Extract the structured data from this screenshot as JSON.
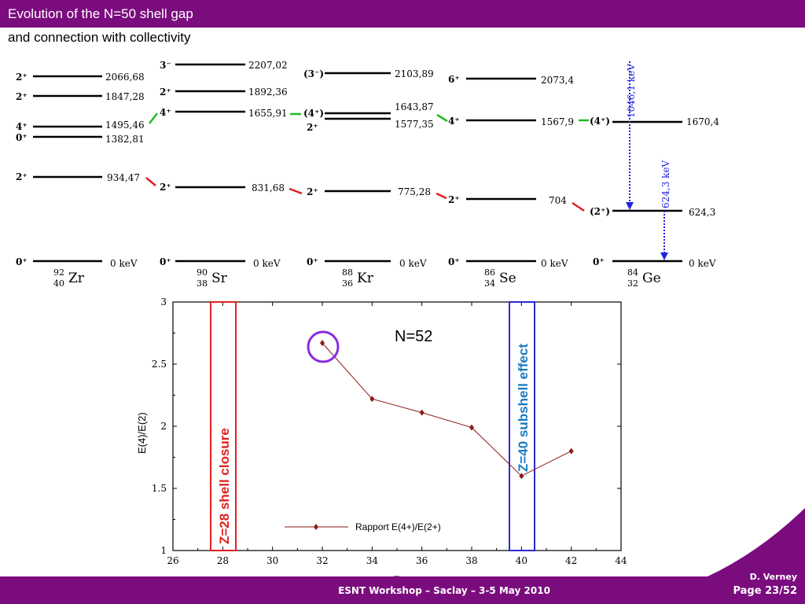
{
  "slide": {
    "title": "Evolution of the N=50 shell gap",
    "subtitle": "and connection with collectivity",
    "footer": "ESNT Workshop –   Saclay –   3-5 May 2010",
    "author": "D. Verney",
    "page": "Page 23/52"
  },
  "colors": {
    "brand": "#7b0c7e",
    "series": "#8b1a1a",
    "shell28": "#e02020",
    "subshell40": "#2a2ad0",
    "subshell40_text": "#1a7ac0",
    "circle": "#8a2be2",
    "connector_green": "#22bb22",
    "connector_red": "#e02020",
    "transition": "#2222dd"
  },
  "level_schemes": [
    {
      "nucleus": "Zr",
      "mass": "92",
      "z": "40",
      "levels": [
        {
          "spin": "2⁺",
          "energy": "2066,68"
        },
        {
          "spin": "2⁺",
          "energy": "1847,28"
        },
        {
          "spin": "4⁺",
          "energy": "1495,46"
        },
        {
          "spin": "0⁺",
          "energy": "1382,81"
        },
        {
          "spin": "2⁺",
          "energy": "934,47"
        },
        {
          "spin": "0⁺",
          "energy": "0 keV"
        }
      ]
    },
    {
      "nucleus": "Sr",
      "mass": "90",
      "z": "38",
      "levels": [
        {
          "spin": "3⁻",
          "energy": "2207,02"
        },
        {
          "spin": "2⁺",
          "energy": "1892,36"
        },
        {
          "spin": "4⁺",
          "energy": "1655,91"
        },
        {
          "spin": "2⁺",
          "energy": "831,68"
        },
        {
          "spin": "0⁺",
          "energy": "0 keV"
        }
      ]
    },
    {
      "nucleus": "Kr",
      "mass": "88",
      "z": "36",
      "levels": [
        {
          "spin": "(3⁻)",
          "energy": "2103,89"
        },
        {
          "spin": "(4⁺)",
          "energy": "1643,87"
        },
        {
          "spin": "2⁺",
          "energy": "1577,35"
        },
        {
          "spin": "2⁺",
          "energy": "775,28"
        },
        {
          "spin": "0⁺",
          "energy": "0 keV"
        }
      ]
    },
    {
      "nucleus": "Se",
      "mass": "86",
      "z": "34",
      "levels": [
        {
          "spin": "6⁺",
          "energy": "2073,4"
        },
        {
          "spin": "4⁺",
          "energy": "1567,9"
        },
        {
          "spin": "2⁺",
          "energy": "704"
        },
        {
          "spin": "0⁺",
          "energy": "0 keV"
        }
      ]
    },
    {
      "nucleus": "Ge",
      "mass": "84",
      "z": "32",
      "levels": [
        {
          "spin": "(4⁺)",
          "energy": "1670,4"
        },
        {
          "spin": "(2⁺)",
          "energy": "624,3"
        },
        {
          "spin": "0⁺",
          "energy": "0 keV"
        }
      ],
      "transitions": [
        "1046,1 keV",
        "624,3 keV"
      ]
    }
  ],
  "chart_data": {
    "type": "line",
    "title": "N=52",
    "xlabel": "Z",
    "ylabel": "E(4)/E(2)",
    "xlim": [
      26,
      44
    ],
    "ylim": [
      1,
      3
    ],
    "xticks": [
      26,
      28,
      30,
      32,
      34,
      36,
      38,
      40,
      42,
      44
    ],
    "yticks": [
      1,
      1.5,
      2,
      2.5,
      3
    ],
    "grid": false,
    "legend_position": "bottom-center",
    "series": [
      {
        "name": "Rapport E(4+)/E(2+)",
        "x": [
          32,
          34,
          36,
          38,
          40,
          42
        ],
        "y": [
          2.67,
          2.22,
          2.11,
          1.99,
          1.6,
          1.8
        ]
      }
    ],
    "annotations": {
      "shell28": "Z=28 shell closure",
      "subshell40": "Z=40 subshell effect"
    }
  }
}
